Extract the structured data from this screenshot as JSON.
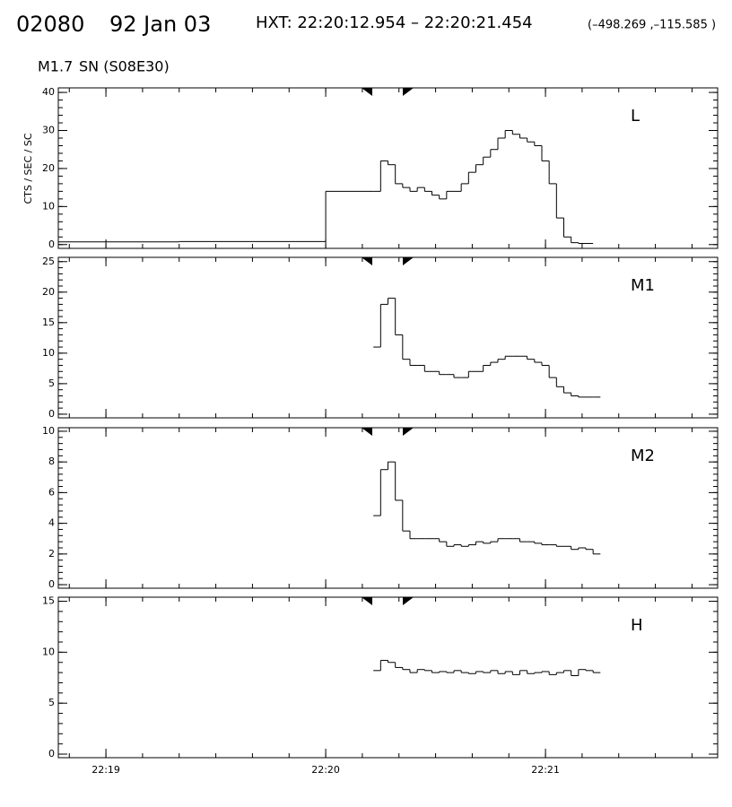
{
  "header": {
    "id": "02080",
    "date": "92 Jan 03",
    "interval": "HXT: 22:20:12.954 – 22:20:21.454",
    "position": "(–498.269 ,–115.585 )",
    "class": "M1.7",
    "location": "SN (S08E30)"
  },
  "chart_data": [
    {
      "type": "line",
      "drawstyle": "steps-post",
      "label": "L",
      "ylabel": "CTS / SEC / SC",
      "color": "#000000",
      "x": [
        80327,
        80360,
        80400,
        80413,
        80415,
        80417,
        80419,
        80421,
        80423,
        80425,
        80427,
        80429,
        80431,
        80433,
        80435,
        80437,
        80439,
        80441,
        80443,
        80445,
        80447,
        80449,
        80451,
        80453,
        80455,
        80457,
        80459,
        80461,
        80463,
        80465,
        80467,
        80469,
        80471
      ],
      "values": [
        0.7,
        0.8,
        14,
        14,
        22,
        21,
        16,
        15,
        14,
        15,
        14,
        13,
        12,
        14,
        14,
        16,
        19,
        21,
        23,
        25,
        28,
        30,
        29,
        28,
        27,
        26,
        22,
        16,
        7,
        2,
        0.5,
        0.3,
        0.3
      ],
      "ylim": [
        -1,
        41.2
      ],
      "yticks": [
        0,
        10,
        20,
        30,
        40
      ]
    },
    {
      "type": "line",
      "drawstyle": "steps-post",
      "label": "M1",
      "color": "#000000",
      "x": [
        80413,
        80415,
        80417,
        80419,
        80421,
        80423,
        80425,
        80427,
        80429,
        80431,
        80433,
        80435,
        80437,
        80439,
        80441,
        80443,
        80445,
        80447,
        80449,
        80451,
        80453,
        80455,
        80457,
        80459,
        80461,
        80463,
        80465,
        80467,
        80469,
        80471,
        80473
      ],
      "values": [
        11,
        18,
        19,
        13,
        9,
        8,
        8,
        7,
        7,
        6.5,
        6.5,
        6,
        6,
        7,
        7,
        8,
        8.5,
        9,
        9.5,
        9.5,
        9.5,
        9,
        8.5,
        8,
        6,
        4.5,
        3.5,
        3,
        2.8,
        2.8,
        2.8
      ],
      "ylim": [
        -0.6,
        25.7
      ],
      "yticks": [
        0,
        5,
        10,
        15,
        20,
        25
      ]
    },
    {
      "type": "line",
      "drawstyle": "steps-post",
      "label": "M2",
      "color": "#000000",
      "x": [
        80413,
        80415,
        80417,
        80419,
        80421,
        80423,
        80425,
        80427,
        80429,
        80431,
        80433,
        80435,
        80437,
        80439,
        80441,
        80443,
        80445,
        80447,
        80449,
        80451,
        80453,
        80455,
        80457,
        80459,
        80461,
        80463,
        80465,
        80467,
        80469,
        80471,
        80473
      ],
      "values": [
        4.5,
        7.5,
        8,
        5.5,
        3.5,
        3,
        3,
        3,
        3,
        2.8,
        2.5,
        2.6,
        2.5,
        2.6,
        2.8,
        2.7,
        2.8,
        3,
        3,
        3,
        2.8,
        2.8,
        2.7,
        2.6,
        2.6,
        2.5,
        2.5,
        2.3,
        2.4,
        2.3,
        2
      ],
      "ylim": [
        -0.23,
        10.23
      ],
      "yticks": [
        0,
        2,
        4,
        6,
        8,
        10
      ]
    },
    {
      "type": "line",
      "drawstyle": "steps-post",
      "label": "H",
      "color": "#000000",
      "x": [
        80413,
        80415,
        80417,
        80419,
        80421,
        80423,
        80425,
        80427,
        80429,
        80431,
        80433,
        80435,
        80437,
        80439,
        80441,
        80443,
        80445,
        80447,
        80449,
        80451,
        80453,
        80455,
        80457,
        80459,
        80461,
        80463,
        80465,
        80467,
        80469,
        80471,
        80473
      ],
      "values": [
        8.2,
        9.2,
        9,
        8.5,
        8.3,
        8,
        8.3,
        8.2,
        8,
        8.1,
        8,
        8.2,
        8,
        7.9,
        8.1,
        8,
        8.2,
        7.9,
        8.1,
        7.8,
        8.2,
        7.9,
        8,
        8.1,
        7.8,
        8,
        8.2,
        7.7,
        8.3,
        8.2,
        8
      ],
      "ylim": [
        -0.35,
        15.4
      ],
      "yticks": [
        0,
        5,
        10,
        15
      ],
      "xlim": [
        80327,
        80507
      ],
      "xticks": [
        {
          "value": 80340,
          "label": "22:19"
        },
        {
          "value": 80400,
          "label": "22:20"
        },
        {
          "value": 80460,
          "label": "22:21"
        }
      ]
    }
  ]
}
